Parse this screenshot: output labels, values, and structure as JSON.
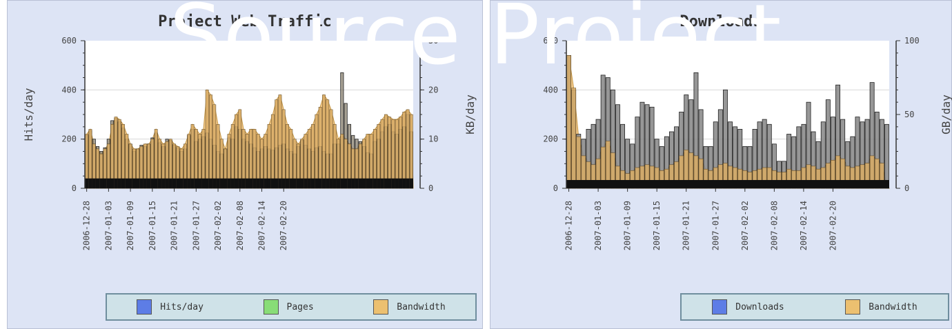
{
  "watermark": "Source Project",
  "charts": [
    {
      "title": "Project Web Traffic",
      "left_label": "Hits/day",
      "right_label": "KB/day",
      "left_ticks": [
        "0",
        "200",
        "400",
        "600"
      ],
      "right_ticks": [
        "0",
        "10",
        "20",
        "30"
      ],
      "date_labels": [
        "2006-12-28",
        "2007-01-03",
        "2007-01-09",
        "2007-01-15",
        "2007-01-21",
        "2007-01-27",
        "2007-02-02",
        "2007-02-08",
        "2007-02-14",
        "2007-02-20"
      ],
      "legend": [
        {
          "label": "Hits/day",
          "color": "#5d7de6"
        },
        {
          "label": "Pages",
          "color": "#88dd77"
        },
        {
          "label": "Bandwidth",
          "color": "#ecc070"
        }
      ]
    },
    {
      "title": "Downloads",
      "left_label": "",
      "right_label": "GB/day",
      "left_ticks": [
        "0",
        "200",
        "400",
        "600"
      ],
      "right_ticks": [
        "0",
        "50",
        "100"
      ],
      "date_labels": [
        "2006-12-28",
        "2007-01-03",
        "2007-01-09",
        "2007-01-15",
        "2007-01-21",
        "2007-01-27",
        "2007-02-02",
        "2007-02-08",
        "2007-02-14",
        "2007-02-20"
      ],
      "legend": [
        {
          "label": "Downloads",
          "color": "#5d7de6"
        },
        {
          "label": "Bandwidth",
          "color": "#ecc070"
        }
      ]
    }
  ],
  "chart_data": [
    {
      "type": "bar",
      "title": "Project Web Traffic",
      "start_date": "2006-12-28",
      "xlabel": "",
      "ylabel": "Hits/day",
      "ylabel_right": "KB/day",
      "ylim": [
        0,
        600
      ],
      "ylim_right": [
        0,
        30
      ],
      "grid": true,
      "legend_position": "bottom",
      "series": [
        {
          "name": "Hits/day",
          "axis": "left",
          "values": [
            215,
            235,
            200,
            170,
            150,
            165,
            200,
            275,
            285,
            270,
            245,
            200,
            180,
            150,
            160,
            175,
            170,
            180,
            205,
            225,
            185,
            170,
            200,
            195,
            175,
            165,
            150,
            160,
            215,
            240,
            190,
            200,
            210,
            225,
            200,
            175,
            150,
            140,
            160,
            205,
            200,
            250,
            240,
            200,
            190,
            180,
            165,
            150,
            160,
            170,
            160,
            155,
            165,
            175,
            180,
            160,
            150,
            140,
            170,
            195,
            175,
            160,
            150,
            165,
            170,
            150,
            140,
            140,
            180,
            180,
            470,
            345,
            260,
            215,
            200,
            190,
            170,
            145,
            140,
            190,
            200,
            230,
            250,
            260,
            230,
            220,
            240,
            250,
            300,
            230
          ]
        },
        {
          "name": "Pages",
          "axis": "left",
          "values": [
            40,
            40,
            40,
            40,
            40,
            40,
            40,
            40,
            40,
            40,
            40,
            40,
            40,
            40,
            40,
            40,
            40,
            40,
            40,
            40,
            40,
            40,
            40,
            40,
            40,
            40,
            40,
            40,
            40,
            40,
            40,
            40,
            40,
            40,
            40,
            40,
            40,
            40,
            40,
            40,
            40,
            40,
            40,
            40,
            40,
            40,
            40,
            40,
            40,
            40,
            40,
            40,
            40,
            40,
            40,
            40,
            40,
            40,
            40,
            40,
            40,
            40,
            40,
            40,
            40,
            40,
            40,
            40,
            40,
            40,
            40,
            40,
            40,
            40,
            40,
            40,
            40,
            40,
            40,
            40,
            40,
            40,
            40,
            40,
            40,
            40,
            40,
            40,
            40,
            40
          ]
        },
        {
          "name": "Bandwidth",
          "axis": "right",
          "values": [
            11,
            12,
            9,
            8,
            7,
            8,
            9,
            13,
            14.5,
            14,
            13,
            11,
            9,
            8,
            8,
            8.5,
            9,
            9,
            10,
            12,
            10,
            9,
            9.5,
            10,
            9,
            8.5,
            8,
            9,
            11,
            13,
            12,
            11,
            12,
            20,
            19,
            17,
            13,
            10,
            8,
            11,
            13,
            15,
            16,
            12,
            11,
            12,
            12,
            11,
            10,
            11,
            13,
            15,
            18,
            19,
            16,
            13,
            12,
            10,
            9,
            10,
            11,
            12,
            13,
            15,
            16.5,
            19,
            18,
            16,
            13,
            10,
            11,
            10,
            9,
            8,
            8,
            9,
            10,
            11,
            11,
            12,
            13,
            14,
            15,
            14.5,
            14,
            14,
            14.5,
            15.5,
            16,
            15
          ]
        }
      ]
    },
    {
      "type": "bar",
      "title": "Downloads",
      "start_date": "2006-12-28",
      "xlabel": "",
      "ylabel": "",
      "ylabel_right": "GB/day",
      "ylim": [
        0,
        600
      ],
      "ylim_right": [
        0,
        100
      ],
      "grid": true,
      "legend_position": "bottom",
      "series": [
        {
          "name": "Downloads",
          "axis": "left",
          "values": [
            540,
            400,
            220,
            200,
            240,
            260,
            280,
            460,
            450,
            400,
            340,
            260,
            200,
            180,
            290,
            350,
            340,
            330,
            200,
            170,
            210,
            230,
            250,
            310,
            380,
            360,
            470,
            320,
            170,
            170,
            270,
            320,
            400,
            270,
            250,
            240,
            170,
            170,
            240,
            270,
            280,
            260,
            180,
            110,
            110,
            220,
            210,
            250,
            260,
            350,
            230,
            190,
            270,
            360,
            290,
            420,
            280,
            190,
            210,
            290,
            270,
            280,
            430,
            310,
            280,
            260
          ]
        },
        {
          "name": "Bandwidth",
          "axis": "right",
          "values": [
            90,
            68,
            35,
            22,
            18,
            16,
            20,
            28,
            32,
            24,
            15,
            12,
            10,
            12,
            14,
            15,
            16,
            15,
            14,
            12,
            13,
            16,
            18,
            22,
            26,
            24,
            22,
            20,
            13,
            12,
            14,
            16,
            17,
            15,
            14,
            13,
            12,
            11,
            12,
            13,
            14,
            14,
            12,
            11,
            11,
            13,
            12,
            12,
            14,
            16,
            15,
            13,
            14,
            17,
            19,
            22,
            20,
            15,
            14,
            15,
            16,
            17,
            22,
            20,
            17,
            2
          ]
        }
      ]
    }
  ]
}
